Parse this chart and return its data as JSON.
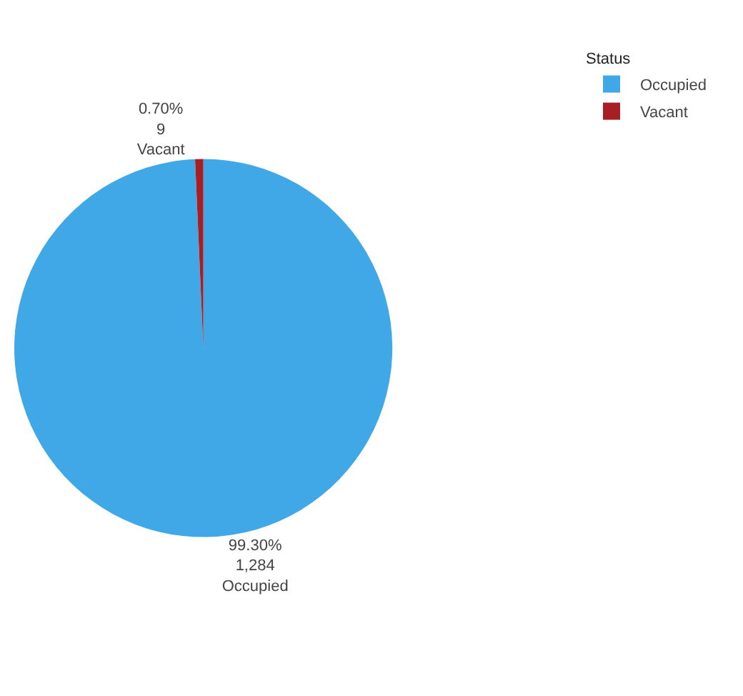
{
  "chart_data": {
    "type": "pie",
    "legend_title": "Status",
    "legend": "top right",
    "categories": [
      "Occupied",
      "Vacant"
    ],
    "values": [
      1284,
      9
    ],
    "colors": [
      "#41a8e8",
      "#a51f24"
    ],
    "value_labels": [
      "99.30%\n1,284",
      "0.70%\n9"
    ]
  }
}
